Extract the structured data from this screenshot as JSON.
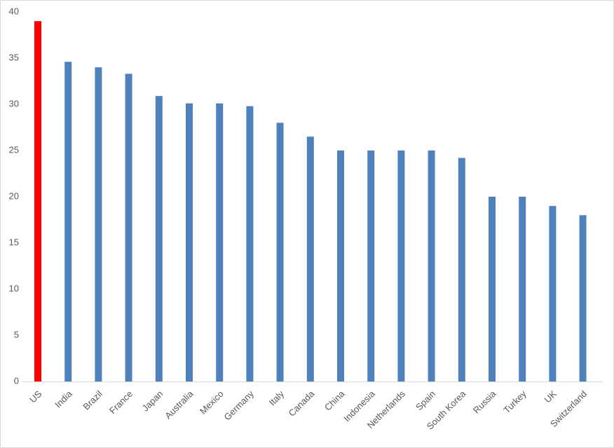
{
  "chart_data": {
    "type": "bar",
    "categories": [
      "US",
      "India",
      "Brazil",
      "France",
      "Japan",
      "Australia",
      "Mexico",
      "Germany",
      "Italy",
      "Canada",
      "China",
      "Indonesia",
      "Netherlands",
      "Spain",
      "South Korea",
      "Russia",
      "Turkey",
      "UK",
      "Switzerland"
    ],
    "values": [
      39,
      34.6,
      34,
      33.3,
      30.9,
      30.1,
      30.1,
      29.8,
      28,
      26.5,
      25,
      25,
      25,
      25,
      24.2,
      20,
      20,
      19,
      18
    ],
    "colors": [
      "#ff0000",
      "#4f81bd",
      "#4f81bd",
      "#4f81bd",
      "#4f81bd",
      "#4f81bd",
      "#4f81bd",
      "#4f81bd",
      "#4f81bd",
      "#4f81bd",
      "#4f81bd",
      "#4f81bd",
      "#4f81bd",
      "#4f81bd",
      "#4f81bd",
      "#4f81bd",
      "#4f81bd",
      "#4f81bd",
      "#4f81bd"
    ],
    "ylim": [
      0,
      40
    ],
    "yticks": [
      0,
      5,
      10,
      15,
      20,
      25,
      30,
      35,
      40
    ],
    "grid": false
  }
}
